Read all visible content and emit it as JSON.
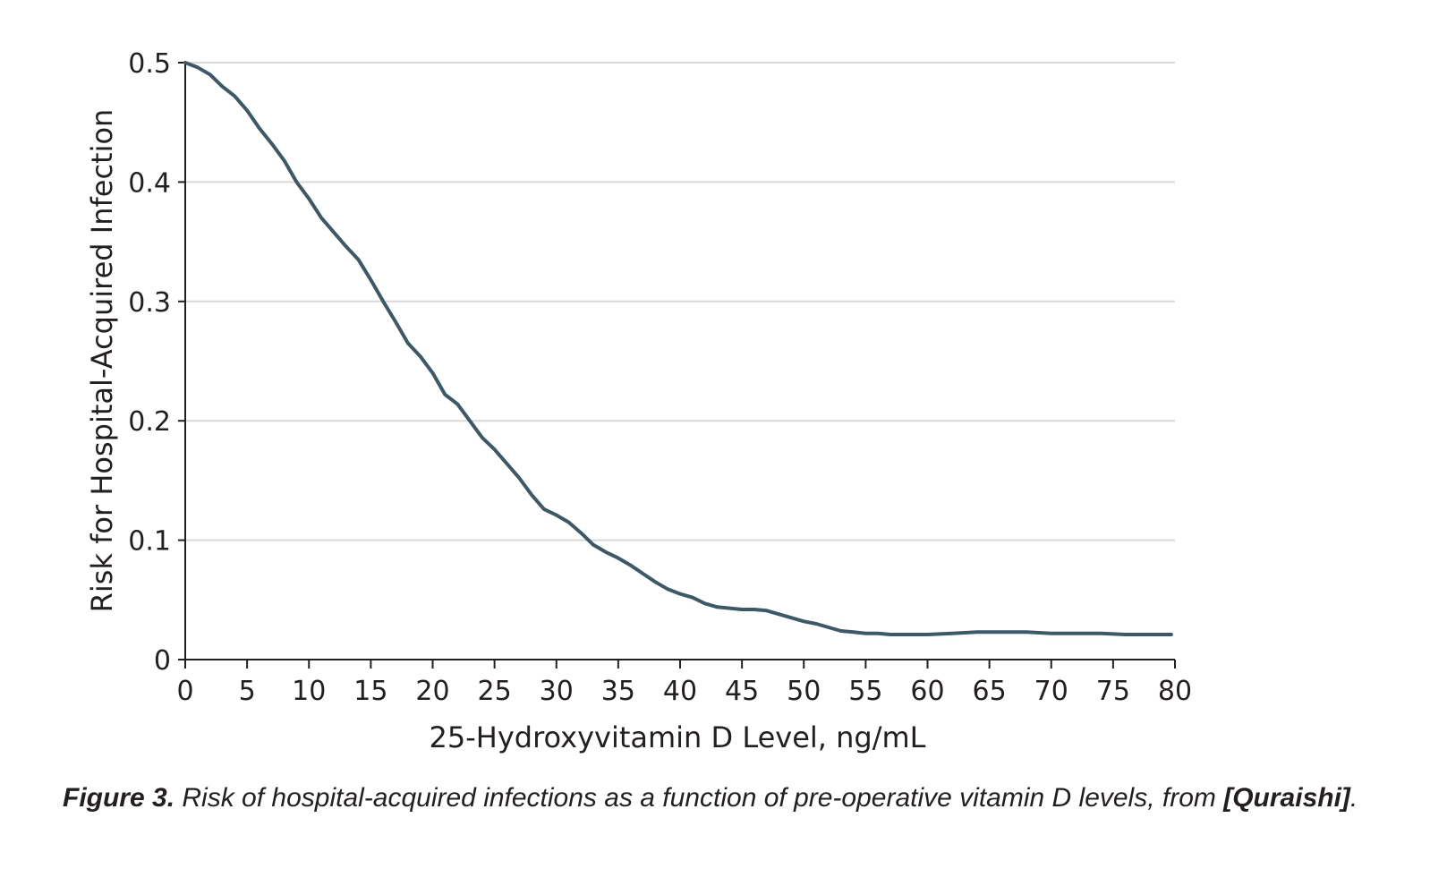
{
  "chart_data": {
    "type": "line",
    "xlabel": "25-Hydroxyvitamin D Level, ng/mL",
    "ylabel": "Risk for Hospital-Acquired Infection",
    "xlim": [
      0,
      80
    ],
    "ylim": [
      0,
      0.5
    ],
    "x_ticks": [
      0,
      5,
      10,
      15,
      20,
      25,
      30,
      35,
      40,
      45,
      50,
      55,
      60,
      65,
      70,
      75,
      80
    ],
    "x_tick_labels": [
      "0",
      "5",
      "10",
      "15",
      "20",
      "25",
      "30",
      "35",
      "40",
      "45",
      "50",
      "55",
      "60",
      "65",
      "70",
      "75",
      "80"
    ],
    "y_ticks": [
      0,
      0.1,
      0.2,
      0.3,
      0.4,
      0.5
    ],
    "y_tick_labels": [
      "0",
      "0.1",
      "0.2",
      "0.3",
      "0.4",
      "0.5"
    ],
    "grid": "horizontal",
    "line_color": "#3d5866",
    "grid_color": "#d9d9d9",
    "series": [
      {
        "x": [
          0,
          1,
          2,
          3,
          4,
          5,
          6,
          7,
          8,
          9,
          10,
          11,
          12,
          13,
          14,
          15,
          16,
          17,
          18,
          19,
          20,
          21,
          22,
          23,
          24,
          25,
          26,
          27,
          28,
          29,
          30,
          31,
          32,
          33,
          34,
          35,
          36,
          37,
          38,
          39,
          40,
          41,
          42,
          43,
          44,
          45,
          46,
          47,
          48,
          49,
          50,
          51,
          52,
          53,
          54,
          55,
          56,
          57,
          58,
          59,
          60,
          62,
          64,
          66,
          68,
          70,
          72,
          74,
          76,
          78,
          79.7
        ],
        "y": [
          0.5,
          0.496,
          0.49,
          0.48,
          0.472,
          0.46,
          0.445,
          0.432,
          0.418,
          0.4,
          0.386,
          0.37,
          0.358,
          0.346,
          0.335,
          0.318,
          0.3,
          0.283,
          0.265,
          0.254,
          0.24,
          0.222,
          0.214,
          0.2,
          0.186,
          0.176,
          0.164,
          0.152,
          0.138,
          0.126,
          0.121,
          0.115,
          0.106,
          0.096,
          0.09,
          0.085,
          0.079,
          0.072,
          0.065,
          0.059,
          0.055,
          0.052,
          0.047,
          0.044,
          0.043,
          0.042,
          0.042,
          0.041,
          0.038,
          0.035,
          0.032,
          0.03,
          0.027,
          0.024,
          0.023,
          0.022,
          0.022,
          0.021,
          0.021,
          0.021,
          0.021,
          0.022,
          0.023,
          0.023,
          0.023,
          0.022,
          0.022,
          0.022,
          0.021,
          0.021,
          0.021
        ]
      }
    ]
  },
  "caption": {
    "label": "Figure 3.",
    "text_before": " Risk of hospital-acquired infections as a function of pre-operative vitamin D levels, from ",
    "citation": "[Quraishi]",
    "text_after": "."
  }
}
